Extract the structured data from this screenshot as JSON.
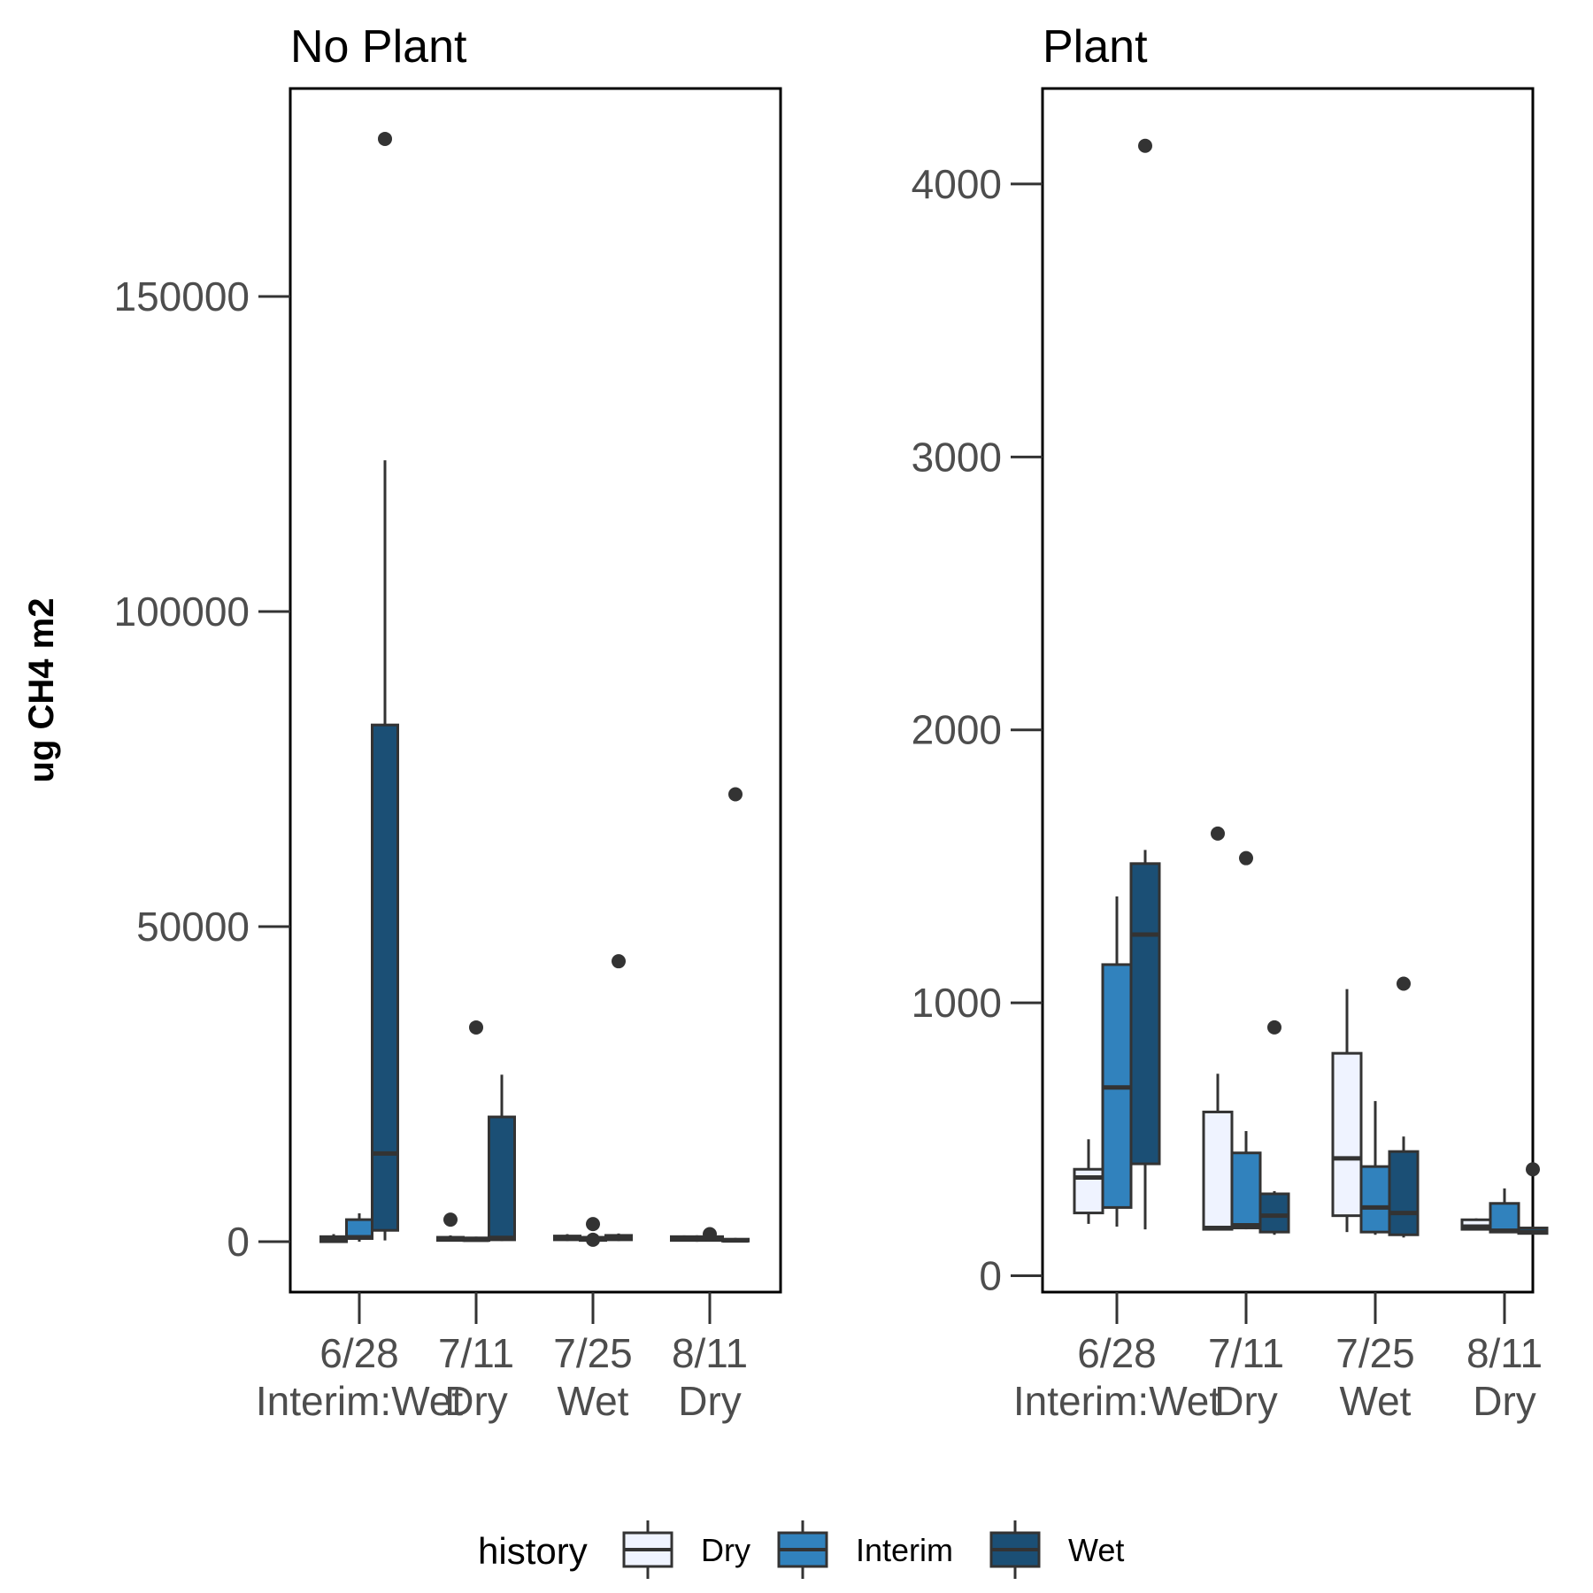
{
  "chart_data": {
    "type": "box",
    "ylabel": "ug CH4 m2",
    "legend": {
      "title": "history",
      "position": "bottom",
      "entries": [
        {
          "name": "Dry",
          "color": "#EFF3FF"
        },
        {
          "name": "Interim",
          "color": "#3182BD"
        },
        {
          "name": "Wet",
          "color": "#1B4F75"
        }
      ]
    },
    "categories": [
      {
        "date": "6/28",
        "condition": "Interim:Wet"
      },
      {
        "date": "7/11",
        "condition": "Dry"
      },
      {
        "date": "7/25",
        "condition": "Wet"
      },
      {
        "date": "8/11",
        "condition": "Dry"
      }
    ],
    "panels": [
      {
        "title": "No Plant",
        "ylim": [
          -8000,
          183000
        ],
        "yticks": [
          0,
          50000,
          100000,
          150000
        ],
        "yticklabels": [
          "0",
          "50000",
          "100000",
          "150000"
        ],
        "boxes": [
          {
            "category": 0,
            "group": "Dry",
            "q1": 0,
            "median": 300,
            "q3": 800,
            "lo": 0,
            "hi": 1200,
            "outliers": []
          },
          {
            "category": 0,
            "group": "Interim",
            "q1": 500,
            "median": 700,
            "q3": 3500,
            "lo": 0,
            "hi": 4500,
            "outliers": []
          },
          {
            "category": 0,
            "group": "Wet",
            "q1": 1800,
            "median": 14000,
            "q3": 82000,
            "lo": 200,
            "hi": 124000,
            "outliers": [
              175000
            ]
          },
          {
            "category": 1,
            "group": "Dry",
            "q1": 200,
            "median": 400,
            "q3": 700,
            "lo": 100,
            "hi": 1000,
            "outliers": [
              3500
            ]
          },
          {
            "category": 1,
            "group": "Interim",
            "q1": 200,
            "median": 300,
            "q3": 600,
            "lo": 100,
            "hi": 800,
            "outliers": [
              34000
            ]
          },
          {
            "category": 1,
            "group": "Wet",
            "q1": 300,
            "median": 600,
            "q3": 19800,
            "lo": 100,
            "hi": 26500,
            "outliers": []
          },
          {
            "category": 2,
            "group": "Dry",
            "q1": 300,
            "median": 500,
            "q3": 900,
            "lo": 100,
            "hi": 1200,
            "outliers": []
          },
          {
            "category": 2,
            "group": "Interim",
            "q1": 200,
            "median": 400,
            "q3": 700,
            "lo": 100,
            "hi": 900,
            "outliers": [
              2800,
              300
            ]
          },
          {
            "category": 2,
            "group": "Wet",
            "q1": 300,
            "median": 600,
            "q3": 1000,
            "lo": 100,
            "hi": 1300,
            "outliers": [
              44500
            ]
          },
          {
            "category": 3,
            "group": "Dry",
            "q1": 200,
            "median": 400,
            "q3": 800,
            "lo": 100,
            "hi": 1000,
            "outliers": []
          },
          {
            "category": 3,
            "group": "Interim",
            "q1": 200,
            "median": 400,
            "q3": 800,
            "lo": 100,
            "hi": 1000,
            "outliers": [
              1200
            ]
          },
          {
            "category": 3,
            "group": "Wet",
            "q1": 100,
            "median": 200,
            "q3": 400,
            "lo": 0,
            "hi": 600,
            "outliers": [
              71000
            ]
          }
        ]
      },
      {
        "title": "Plant",
        "ylim": [
          -60,
          4350
        ],
        "yticks": [
          0,
          1000,
          2000,
          3000,
          4000
        ],
        "yticklabels": [
          "0",
          "1000",
          "2000",
          "3000",
          "4000"
        ],
        "boxes": [
          {
            "category": 0,
            "group": "Dry",
            "q1": 230,
            "median": 360,
            "q3": 390,
            "lo": 190,
            "hi": 500,
            "outliers": []
          },
          {
            "category": 0,
            "group": "Interim",
            "q1": 250,
            "median": 690,
            "q3": 1140,
            "lo": 180,
            "hi": 1390,
            "outliers": []
          },
          {
            "category": 0,
            "group": "Wet",
            "q1": 410,
            "median": 1250,
            "q3": 1510,
            "lo": 170,
            "hi": 1560,
            "outliers": [
              4140
            ]
          },
          {
            "category": 1,
            "group": "Dry",
            "q1": 170,
            "median": 175,
            "q3": 600,
            "lo": 170,
            "hi": 740,
            "outliers": [
              1620
            ]
          },
          {
            "category": 1,
            "group": "Interim",
            "q1": 175,
            "median": 185,
            "q3": 450,
            "lo": 170,
            "hi": 530,
            "outliers": [
              1530
            ]
          },
          {
            "category": 1,
            "group": "Wet",
            "q1": 160,
            "median": 220,
            "q3": 300,
            "lo": 150,
            "hi": 310,
            "outliers": [
              910
            ]
          },
          {
            "category": 2,
            "group": "Dry",
            "q1": 220,
            "median": 430,
            "q3": 815,
            "lo": 160,
            "hi": 1050,
            "outliers": []
          },
          {
            "category": 2,
            "group": "Interim",
            "q1": 160,
            "median": 250,
            "q3": 400,
            "lo": 150,
            "hi": 640,
            "outliers": []
          },
          {
            "category": 2,
            "group": "Wet",
            "q1": 150,
            "median": 230,
            "q3": 455,
            "lo": 140,
            "hi": 510,
            "outliers": [
              1070
            ]
          },
          {
            "category": 3,
            "group": "Dry",
            "q1": 170,
            "median": 180,
            "q3": 205,
            "lo": 170,
            "hi": 210,
            "outliers": []
          },
          {
            "category": 3,
            "group": "Interim",
            "q1": 160,
            "median": 165,
            "q3": 265,
            "lo": 160,
            "hi": 320,
            "outliers": []
          },
          {
            "category": 3,
            "group": "Wet",
            "q1": 155,
            "median": 160,
            "q3": 175,
            "lo": 150,
            "hi": 180,
            "outliers": [
              390
            ]
          }
        ]
      }
    ]
  }
}
